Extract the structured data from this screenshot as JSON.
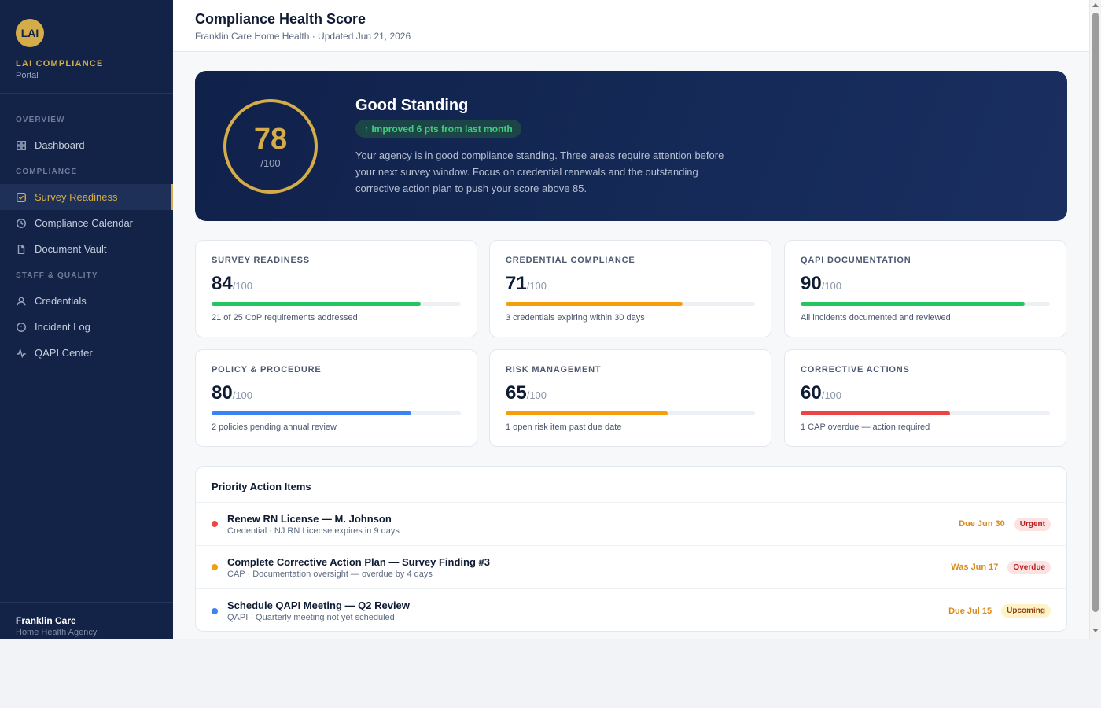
{
  "brand": {
    "logo": "LAI",
    "name": "LAI COMPLIANCE",
    "sub": "Portal"
  },
  "sidebar": {
    "sections": [
      {
        "title": "OVERVIEW",
        "items": [
          {
            "label": "Dashboard",
            "icon": "grid-icon"
          }
        ]
      },
      {
        "title": "COMPLIANCE",
        "items": [
          {
            "label": "Survey Readiness",
            "icon": "checklist-icon",
            "active": true
          },
          {
            "label": "Compliance Calendar",
            "icon": "clock-icon"
          },
          {
            "label": "Document Vault",
            "icon": "document-icon"
          }
        ]
      },
      {
        "title": "STAFF & QUALITY",
        "items": [
          {
            "label": "Credentials",
            "icon": "user-icon"
          },
          {
            "label": "Incident Log",
            "icon": "alert-circle-icon"
          },
          {
            "label": "QAPI Center",
            "icon": "activity-icon"
          }
        ]
      }
    ],
    "footer": {
      "org": "Franklin Care",
      "type": "Home Health Agency"
    }
  },
  "header": {
    "title": "Compliance Health Score",
    "subtitle": "Franklin Care Home Health · Updated Jun 21, 2026"
  },
  "hero": {
    "score": "78",
    "max": "/100",
    "title": "Good Standing",
    "pill": "↑ Improved 6 pts from last month",
    "text": "Your agency is in good compliance standing. Three areas require attention before your next survey window. Focus on credential renewals and the outstanding corrective action plan to push your score above 85."
  },
  "cards": [
    {
      "label": "SURVEY READINESS",
      "score": "84",
      "max": "/100",
      "value": 84,
      "color": "#22c55e",
      "note": "21 of 25 CoP requirements addressed"
    },
    {
      "label": "CREDENTIAL COMPLIANCE",
      "score": "71",
      "max": "/100",
      "value": 71,
      "color": "#f59e0b",
      "note": "3 credentials expiring within 30 days"
    },
    {
      "label": "QAPI DOCUMENTATION",
      "score": "90",
      "max": "/100",
      "value": 90,
      "color": "#22c55e",
      "note": "All incidents documented and reviewed"
    },
    {
      "label": "POLICY & PROCEDURE",
      "score": "80",
      "max": "/100",
      "value": 80,
      "color": "#3b82f6",
      "note": "2 policies pending annual review"
    },
    {
      "label": "RISK MANAGEMENT",
      "score": "65",
      "max": "/100",
      "value": 65,
      "color": "#f59e0b",
      "note": "1 open risk item past due date"
    },
    {
      "label": "CORRECTIVE ACTIONS",
      "score": "60",
      "max": "/100",
      "value": 60,
      "color": "#ef4444",
      "note": "1 CAP overdue — action required"
    }
  ],
  "priority": {
    "title": "Priority Action Items",
    "items": [
      {
        "title": "Renew RN License — M. Johnson",
        "sub": "Credential · NJ RN License expires in 9 days",
        "due": "Due Jun 30",
        "badge": "Urgent",
        "dot": "#ef4444",
        "badge_bg": "#fde2e2",
        "badge_fg": "#b91c1c"
      },
      {
        "title": "Complete Corrective Action Plan — Survey Finding #3",
        "sub": "CAP · Documentation oversight — overdue by 4 days",
        "due": "Was Jun 17",
        "badge": "Overdue",
        "dot": "#f59e0b",
        "badge_bg": "#fde2e2",
        "badge_fg": "#b91c1c"
      },
      {
        "title": "Schedule QAPI Meeting — Q2 Review",
        "sub": "QAPI · Quarterly meeting not yet scheduled",
        "due": "Due Jul 15",
        "badge": "Upcoming",
        "dot": "#3b82f6",
        "badge_bg": "#fef3c7",
        "badge_fg": "#92400e"
      }
    ]
  }
}
